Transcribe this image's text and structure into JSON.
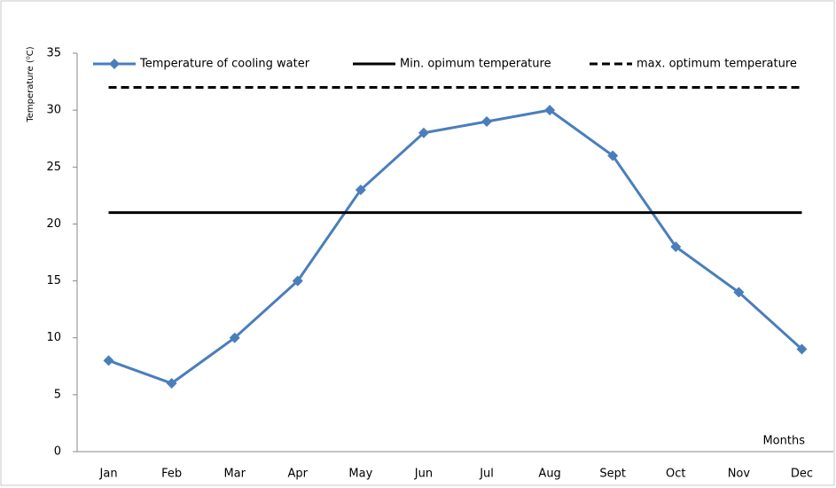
{
  "chart_data": {
    "type": "line",
    "y_label": "Temperature (⁰C)",
    "x_label": "Months",
    "categories": [
      "Jan",
      "Feb",
      "Mar",
      "Apr",
      "May",
      "Jun",
      "Jul",
      "Aug",
      "Sept",
      "Oct",
      "Nov",
      "Dec"
    ],
    "series": [
      {
        "name": "Temperature of cooling water",
        "color": "#4a7ebb",
        "style": "solid-marker",
        "values": [
          8,
          6,
          10,
          15,
          23,
          28,
          29,
          30,
          26,
          18,
          14,
          9
        ]
      },
      {
        "name": "Min. opimum temperature",
        "color": "#000000",
        "style": "solid",
        "values": [
          21,
          21,
          21,
          21,
          21,
          21,
          21,
          21,
          21,
          21,
          21,
          21
        ]
      },
      {
        "name": "max. optimum temperature",
        "color": "#000000",
        "style": "dashed",
        "values": [
          32,
          32,
          32,
          32,
          32,
          32,
          32,
          32,
          32,
          32,
          32,
          32
        ]
      }
    ],
    "ylim": [
      0,
      35
    ],
    "yticks": [
      0,
      5,
      10,
      15,
      20,
      25,
      30,
      35
    ],
    "grid": false
  }
}
